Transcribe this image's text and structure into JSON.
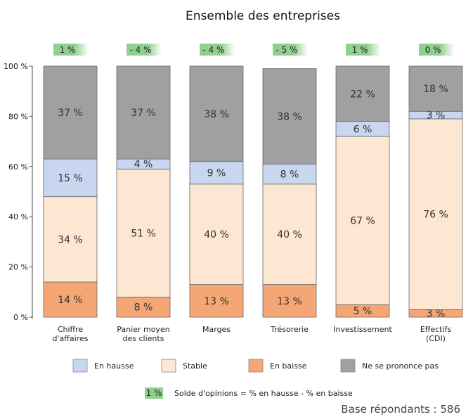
{
  "chart_data": {
    "type": "bar",
    "stacked": true,
    "title": "Ensemble des entreprises",
    "categories": [
      [
        "Chiffre",
        "d'affaires"
      ],
      [
        "Panier moyen",
        "des clients"
      ],
      [
        "Marges"
      ],
      [
        "Trésorerie"
      ],
      [
        "Investissement"
      ],
      [
        "Effectifs",
        "(CDI)"
      ]
    ],
    "ylim": [
      0,
      100
    ],
    "yticks": [
      "0 %",
      "20 %",
      "40 %",
      "60 %",
      "80 %",
      "100 %"
    ],
    "grid": false,
    "legend_position": "bottom",
    "series": [
      {
        "name": "En baisse",
        "color": "#f4a774",
        "values": [
          14,
          8,
          13,
          13,
          5,
          3
        ],
        "labels": [
          "14 %",
          "8 %",
          "13 %",
          "13 %",
          "5 %",
          "3 %"
        ]
      },
      {
        "name": "Stable",
        "color": "#fde7d3",
        "values": [
          34,
          51,
          40,
          40,
          67,
          76
        ],
        "labels": [
          "34 %",
          "51 %",
          "40 %",
          "40 %",
          "67 %",
          "76 %"
        ]
      },
      {
        "name": "En hausse",
        "color": "#c8d7ef",
        "values": [
          15,
          4,
          9,
          8,
          6,
          3
        ],
        "labels": [
          "15 %",
          "4 %",
          "9 %",
          "8 %",
          "6 %",
          "3 %"
        ]
      },
      {
        "name": "Ne se prononce pas",
        "color": "#a0a0a3",
        "values": [
          37,
          37,
          38,
          38,
          22,
          18
        ],
        "labels": [
          "37 %",
          "37 %",
          "38 %",
          "38 %",
          "22 %",
          "18 %"
        ]
      }
    ],
    "legend_order": [
      "En hausse",
      "Stable",
      "En baisse",
      "Ne se prononce pas"
    ],
    "solde_label": "Solde d'opinions",
    "solde_color": "#8fd08f",
    "solde": [
      "1 %",
      "- 4 %",
      "- 4 %",
      "- 5 %",
      "1 %",
      "0 %"
    ],
    "note": {
      "badge": "1 %",
      "text": "Solde d'opinions = % en hausse - % en baisse"
    },
    "base": "Base répondants : 586"
  }
}
